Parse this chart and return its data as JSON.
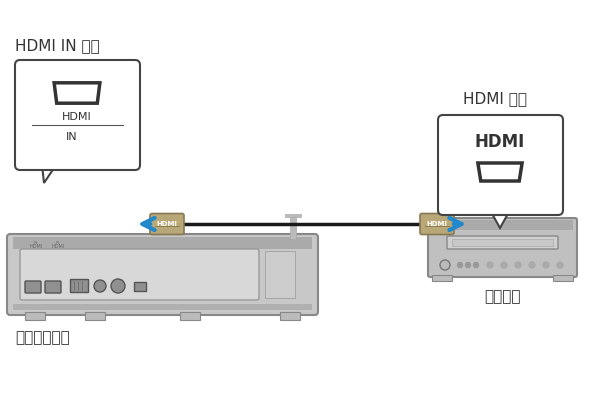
{
  "bg_color": "#ffffff",
  "label_hdmi_in": "HDMI IN 插孔",
  "label_hdmi_out": "HDMI 输出",
  "label_device_left": "本机（后端）",
  "label_device_right": "视频设备",
  "label_hdmi_port_text": "HDMI",
  "label_hdmi_port_subtext": "IN",
  "label_hdmi_right_text": "HDMI",
  "connector_color": "#b8a878",
  "cable_color": "#1a1a1a",
  "arrow_color": "#2288cc",
  "soundbar_body": "#c8c8c8",
  "soundbar_edge": "#888888",
  "soundbar_inner": "#d8d8d8",
  "soundbar_inner_edge": "#999999",
  "device_body": "#c0c0c0",
  "device_edge": "#888888"
}
